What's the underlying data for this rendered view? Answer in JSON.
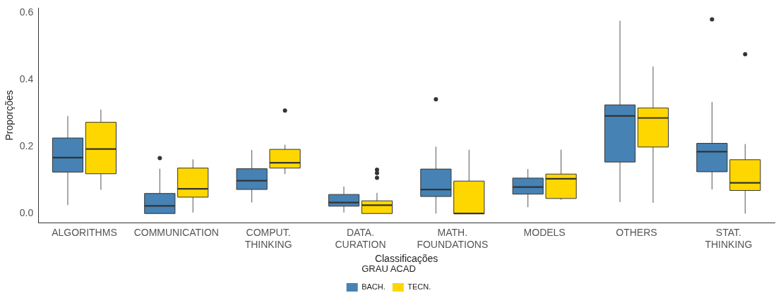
{
  "chart_data": {
    "type": "box",
    "xlabel": "Classificações",
    "ylabel": "Proporções",
    "legend_title": "GRAU ACAD",
    "legend": "bottom",
    "grid": false,
    "categories": [
      "ALGORITHMS",
      "COMMUNICATION",
      "COMPUT.\nTHINKING",
      "DATA.\nCURATION",
      "MATH.\nFOUNDATIONS",
      "MODELS",
      "OTHERS",
      "STAT.\nTHINKING"
    ],
    "ylim": [
      -0.027,
      0.615
    ],
    "yticks": [
      {
        "value": 0,
        "label": "0.0"
      },
      {
        "value": 0.2,
        "label": "0.2"
      },
      {
        "value": 0.4,
        "label": "0.4"
      },
      {
        "value": 0.6,
        "label": "0.6"
      }
    ],
    "series": [
      {
        "name": "BACH.",
        "color": "#4682b4",
        "boxes": [
          {
            "low": 0.025,
            "q1": 0.124,
            "median": 0.167,
            "q3": 0.226,
            "high": 0.292
          },
          {
            "low": 0,
            "q1": 0,
            "median": 0.023,
            "q3": 0.06,
            "high": 0.134,
            "outliers": [
              0.166
            ]
          },
          {
            "low": 0.033,
            "q1": 0.072,
            "median": 0.098,
            "q3": 0.134,
            "high": 0.19
          },
          {
            "low": 0.003,
            "q1": 0.022,
            "median": 0.033,
            "q3": 0.057,
            "high": 0.081
          },
          {
            "low": 0,
            "q1": 0.051,
            "median": 0.072,
            "q3": 0.133,
            "high": 0.2,
            "outliers": [
              0.342
            ]
          },
          {
            "low": 0.019,
            "q1": 0.058,
            "median": 0.079,
            "q3": 0.106,
            "high": 0.133
          },
          {
            "low": 0.034,
            "q1": 0.154,
            "median": 0.292,
            "q3": 0.325,
            "high": 0.577
          },
          {
            "low": 0.072,
            "q1": 0.125,
            "median": 0.185,
            "q3": 0.21,
            "high": 0.334,
            "outliers": [
              0.581
            ]
          }
        ]
      },
      {
        "name": "TECN.",
        "color": "#ffd700",
        "boxes": [
          {
            "low": 0.071,
            "q1": 0.119,
            "median": 0.193,
            "q3": 0.273,
            "high": 0.311
          },
          {
            "low": 0.003,
            "q1": 0.049,
            "median": 0.074,
            "q3": 0.136,
            "high": 0.162
          },
          {
            "low": 0.118,
            "q1": 0.136,
            "median": 0.152,
            "q3": 0.192,
            "high": 0.206,
            "outliers": [
              0.308
            ]
          },
          {
            "low": 0,
            "q1": 0,
            "median": 0.025,
            "q3": 0.038,
            "high": 0.062,
            "outliers": [
              0.107,
              0.121,
              0.131
            ]
          },
          {
            "low": 0,
            "q1": 0,
            "median": 0,
            "q3": 0.097,
            "high": 0.191
          },
          {
            "low": 0.041,
            "q1": 0.045,
            "median": 0.104,
            "q3": 0.118,
            "high": 0.191
          },
          {
            "low": 0.032,
            "q1": 0.199,
            "median": 0.286,
            "q3": 0.316,
            "high": 0.44
          },
          {
            "low": 0,
            "q1": 0.069,
            "median": 0.092,
            "q3": 0.161,
            "high": 0.208,
            "outliers": [
              0.477
            ]
          }
        ]
      }
    ]
  }
}
